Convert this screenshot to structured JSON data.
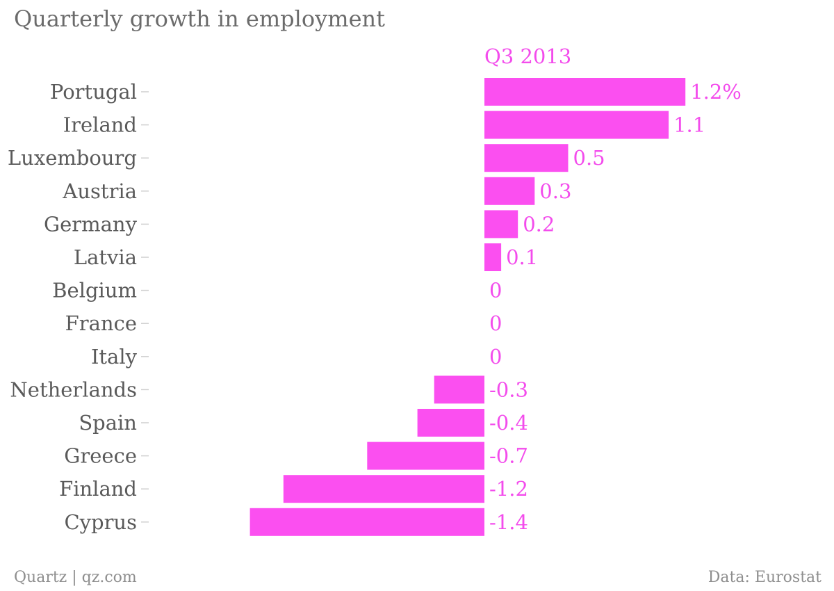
{
  "title": "Quarterly growth in employment",
  "footer": {
    "source_left": "Quartz | qz.com",
    "source_right": "Data: Eurostat"
  },
  "chart_data": {
    "type": "bar",
    "orientation": "horizontal",
    "title": "Quarterly growth in employment",
    "series_label": "Q3 2013",
    "categories": [
      "Portugal",
      "Ireland",
      "Luxembourg",
      "Austria",
      "Germany",
      "Latvia",
      "Belgium",
      "France",
      "Italy",
      "Netherlands",
      "Spain",
      "Greece",
      "Finland",
      "Cyprus"
    ],
    "values": [
      1.2,
      1.1,
      0.5,
      0.3,
      0.2,
      0.1,
      0,
      0,
      0,
      -0.3,
      -0.4,
      -0.7,
      -1.2,
      -1.4
    ],
    "value_labels": [
      "1.2%",
      "1.1",
      "0.5",
      "0.3",
      "0.2",
      "0.1",
      "0",
      "0",
      "0",
      "-0.3",
      "-0.4",
      "-0.7",
      "-1.2",
      "-1.4"
    ],
    "xlim": [
      -1.4,
      1.2
    ],
    "grid": false,
    "bar_color": "#fb4ff0",
    "label_color": "#f34cec"
  }
}
